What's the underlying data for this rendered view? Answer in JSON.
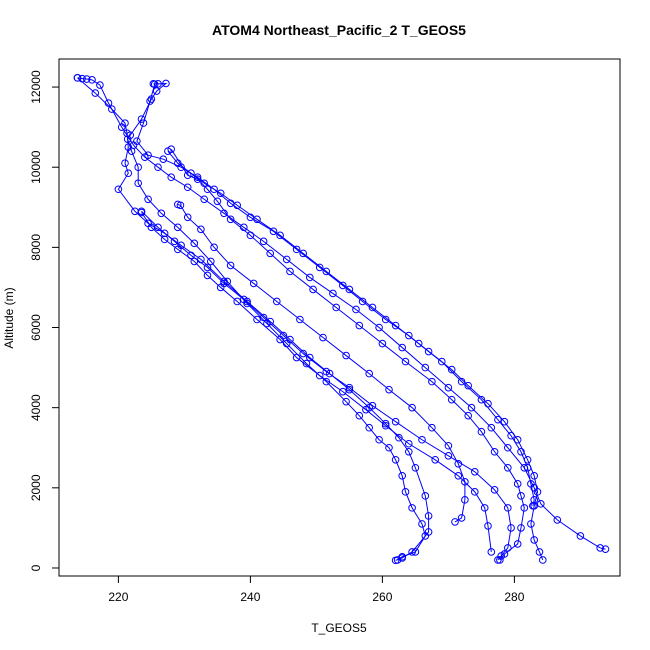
{
  "chart_data": {
    "type": "line",
    "title": "ATOM4 Northeast_Pacific_2 T_GEOS5",
    "xlabel": "T_GEOS5",
    "ylabel": "Altitude (m)",
    "xlim": [
      211,
      296
    ],
    "ylim": [
      -200,
      12700
    ],
    "xticks": [
      220,
      240,
      260,
      280
    ],
    "yticks": [
      0,
      2000,
      4000,
      6000,
      8000,
      10000,
      12000
    ],
    "grid": false,
    "legend": "none",
    "color": "#0000ff",
    "markers": "open-circle",
    "series": [
      {
        "values": [
          [
            213.8,
            12230
          ],
          [
            214.5,
            12210
          ],
          [
            215.2,
            12200
          ],
          [
            216.0,
            12180
          ],
          [
            217.2,
            12050
          ],
          [
            218.5,
            11600
          ],
          [
            220.5,
            11000
          ],
          [
            222.3,
            10550
          ],
          [
            224.0,
            10250
          ],
          [
            226.0,
            10000
          ],
          [
            228.0,
            9750
          ],
          [
            230.5,
            9500
          ],
          [
            233.0,
            9200
          ],
          [
            236.0,
            8850
          ],
          [
            239.0,
            8500
          ],
          [
            242.0,
            8150
          ],
          [
            245.5,
            7700
          ],
          [
            249.0,
            7250
          ],
          [
            252.5,
            6850
          ],
          [
            256.0,
            6450
          ],
          [
            259.5,
            6000
          ],
          [
            263.0,
            5500
          ],
          [
            266.5,
            5000
          ],
          [
            270.0,
            4500
          ],
          [
            273.5,
            4000
          ],
          [
            276.5,
            3500
          ],
          [
            279.0,
            3000
          ],
          [
            281.5,
            2500
          ],
          [
            283.0,
            2000
          ],
          [
            284.0,
            1600
          ],
          [
            286.5,
            1200
          ],
          [
            290.0,
            800
          ],
          [
            293.0,
            500
          ],
          [
            293.8,
            470
          ]
        ]
      },
      {
        "values": [
          [
            213.8,
            12230
          ],
          [
            216.5,
            11850
          ],
          [
            219.0,
            11450
          ],
          [
            221.0,
            11100
          ],
          [
            221.3,
            10850
          ],
          [
            221.5,
            10500
          ],
          [
            221.0,
            10100
          ],
          [
            221.5,
            9850
          ],
          [
            220.0,
            9450
          ],
          [
            222.5,
            8900
          ],
          [
            224.5,
            8600
          ],
          [
            227.0,
            8350
          ],
          [
            229.5,
            8050
          ],
          [
            232.5,
            7700
          ],
          [
            236.0,
            7150
          ],
          [
            239.5,
            6650
          ],
          [
            243.0,
            6150
          ],
          [
            246.0,
            5700
          ],
          [
            249.0,
            5250
          ],
          [
            252.0,
            4850
          ],
          [
            255.0,
            4450
          ],
          [
            258.0,
            4000
          ],
          [
            260.5,
            3600
          ],
          [
            262.5,
            3250
          ],
          [
            264.0,
            2900
          ],
          [
            265.0,
            2500
          ],
          [
            266.5,
            1800
          ],
          [
            267.0,
            1300
          ],
          [
            267.0,
            900
          ],
          [
            264.5,
            400
          ],
          [
            263.0,
            250
          ],
          [
            262.0,
            190
          ]
        ]
      },
      {
        "values": [
          [
            225.3,
            12080
          ],
          [
            226.0,
            12080
          ],
          [
            227.2,
            12090
          ],
          [
            225.8,
            11900
          ],
          [
            225.0,
            11700
          ],
          [
            223.5,
            11200
          ],
          [
            221.8,
            10800
          ],
          [
            221.4,
            10700
          ],
          [
            222.0,
            10400
          ],
          [
            223.0,
            10000
          ],
          [
            223.0,
            9600
          ],
          [
            224.5,
            9200
          ],
          [
            226.5,
            8850
          ],
          [
            229.0,
            8500
          ],
          [
            231.5,
            8100
          ],
          [
            234.0,
            7650
          ],
          [
            236.5,
            7150
          ],
          [
            239.5,
            6600
          ],
          [
            242.5,
            6100
          ],
          [
            245.5,
            5600
          ],
          [
            248.5,
            5100
          ],
          [
            251.5,
            4650
          ],
          [
            254.5,
            4150
          ],
          [
            256.5,
            3800
          ],
          [
            258.0,
            3500
          ],
          [
            259.5,
            3200
          ],
          [
            261.0,
            3000
          ],
          [
            262.0,
            2700
          ],
          [
            263.0,
            2300
          ],
          [
            263.5,
            1900
          ],
          [
            264.5,
            1500
          ],
          [
            266.0,
            1100
          ],
          [
            266.5,
            800
          ],
          [
            265.0,
            400
          ],
          [
            263.0,
            280
          ],
          [
            262.3,
            200
          ]
        ]
      },
      {
        "values": [
          [
            225.5,
            12070
          ],
          [
            224.8,
            11650
          ],
          [
            223.8,
            11100
          ],
          [
            222.8,
            10650
          ],
          [
            224.5,
            10300
          ],
          [
            226.8,
            10200
          ],
          [
            229.5,
            10000
          ],
          [
            232.0,
            9750
          ],
          [
            234.5,
            9450
          ],
          [
            237.0,
            9100
          ],
          [
            240.0,
            8750
          ],
          [
            243.5,
            8400
          ],
          [
            247.0,
            7950
          ],
          [
            250.5,
            7500
          ],
          [
            254.0,
            7050
          ],
          [
            257.0,
            6650
          ],
          [
            260.5,
            6200
          ],
          [
            264.0,
            5800
          ],
          [
            267.0,
            5400
          ],
          [
            270.5,
            4950
          ],
          [
            273.0,
            4550
          ],
          [
            276.0,
            4100
          ],
          [
            278.5,
            3650
          ],
          [
            280.5,
            3200
          ],
          [
            282.0,
            2700
          ],
          [
            283.0,
            2300
          ],
          [
            283.5,
            1900
          ],
          [
            283.0,
            1550
          ],
          [
            282.5,
            1100
          ],
          [
            283.0,
            700
          ],
          [
            283.8,
            400
          ],
          [
            284.3,
            200
          ]
        ]
      },
      {
        "values": [
          [
            227.5,
            10400
          ],
          [
            229.0,
            10100
          ],
          [
            231.0,
            9850
          ],
          [
            233.0,
            9600
          ],
          [
            235.5,
            9350
          ],
          [
            238.0,
            9050
          ],
          [
            241.0,
            8700
          ],
          [
            244.5,
            8300
          ],
          [
            248.0,
            7850
          ],
          [
            251.5,
            7400
          ],
          [
            255.0,
            6950
          ],
          [
            258.5,
            6500
          ],
          [
            262.0,
            6050
          ],
          [
            265.5,
            5600
          ],
          [
            269.0,
            5150
          ],
          [
            272.0,
            4650
          ],
          [
            275.0,
            4200
          ],
          [
            277.5,
            3700
          ],
          [
            279.5,
            3300
          ],
          [
            281.0,
            2900
          ],
          [
            282.0,
            2500
          ],
          [
            282.5,
            2100
          ],
          [
            283.0,
            1700
          ],
          [
            282.8,
            1550
          ]
        ]
      },
      {
        "values": [
          [
            228.0,
            10450
          ],
          [
            230.5,
            9800
          ],
          [
            232.0,
            9700
          ],
          [
            233.5,
            9450
          ],
          [
            235.0,
            9150
          ],
          [
            237.0,
            8700
          ],
          [
            240.0,
            8300
          ],
          [
            243.0,
            7850
          ],
          [
            246.0,
            7400
          ],
          [
            249.5,
            6950
          ],
          [
            253.0,
            6500
          ],
          [
            256.5,
            6050
          ],
          [
            260.0,
            5600
          ],
          [
            263.5,
            5150
          ],
          [
            267.5,
            4650
          ],
          [
            270.5,
            4200
          ],
          [
            273.0,
            3800
          ],
          [
            275.0,
            3400
          ],
          [
            277.0,
            2900
          ],
          [
            279.0,
            2500
          ],
          [
            280.5,
            2100
          ],
          [
            281.0,
            1800
          ],
          [
            281.5,
            1500
          ],
          [
            281.0,
            1000
          ],
          [
            280.5,
            600
          ],
          [
            278.5,
            350
          ],
          [
            277.8,
            200
          ]
        ]
      },
      {
        "values": [
          [
            229.0,
            9070
          ],
          [
            229.4,
            9050
          ],
          [
            230.5,
            8750
          ],
          [
            232.5,
            8450
          ],
          [
            234.5,
            8000
          ],
          [
            237.0,
            7550
          ],
          [
            240.5,
            7100
          ],
          [
            244.0,
            6650
          ],
          [
            247.5,
            6200
          ],
          [
            251.0,
            5750
          ],
          [
            254.5,
            5300
          ],
          [
            258.0,
            4850
          ],
          [
            261.0,
            4450
          ],
          [
            264.5,
            4000
          ],
          [
            267.5,
            3500
          ],
          [
            270.0,
            3050
          ],
          [
            271.5,
            2600
          ],
          [
            272.5,
            2150
          ],
          [
            272.5,
            1700
          ],
          [
            272.0,
            1250
          ],
          [
            271.0,
            1150
          ]
        ]
      },
      {
        "values": [
          [
            223.5,
            8870
          ],
          [
            225.0,
            8500
          ],
          [
            227.0,
            8200
          ],
          [
            229.0,
            7950
          ],
          [
            231.5,
            7650
          ],
          [
            233.5,
            7300
          ],
          [
            235.5,
            7000
          ],
          [
            238.0,
            6650
          ],
          [
            241.0,
            6200
          ],
          [
            244.5,
            5700
          ],
          [
            247.0,
            5250
          ],
          [
            250.5,
            4800
          ],
          [
            254.0,
            4400
          ],
          [
            257.5,
            3950
          ],
          [
            260.5,
            3550
          ],
          [
            264.0,
            3100
          ],
          [
            268.0,
            2700
          ],
          [
            271.5,
            2300
          ],
          [
            274.0,
            1900
          ],
          [
            275.5,
            1500
          ],
          [
            276.0,
            1050
          ],
          [
            276.5,
            400
          ]
        ]
      },
      {
        "values": [
          [
            223.5,
            8900
          ],
          [
            226.0,
            8500
          ],
          [
            228.5,
            8150
          ],
          [
            231.0,
            7800
          ],
          [
            233.5,
            7500
          ],
          [
            236.0,
            7100
          ],
          [
            239.0,
            6700
          ],
          [
            242.0,
            6250
          ],
          [
            245.0,
            5800
          ],
          [
            248.0,
            5350
          ],
          [
            251.5,
            4900
          ],
          [
            255.0,
            4500
          ],
          [
            258.5,
            4050
          ],
          [
            262.0,
            3650
          ],
          [
            266.0,
            3200
          ],
          [
            270.0,
            2800
          ],
          [
            274.0,
            2400
          ],
          [
            277.0,
            1950
          ],
          [
            279.0,
            1500
          ],
          [
            279.5,
            1000
          ],
          [
            279.0,
            500
          ],
          [
            278.0,
            300
          ],
          [
            277.5,
            200
          ]
        ]
      }
    ]
  }
}
